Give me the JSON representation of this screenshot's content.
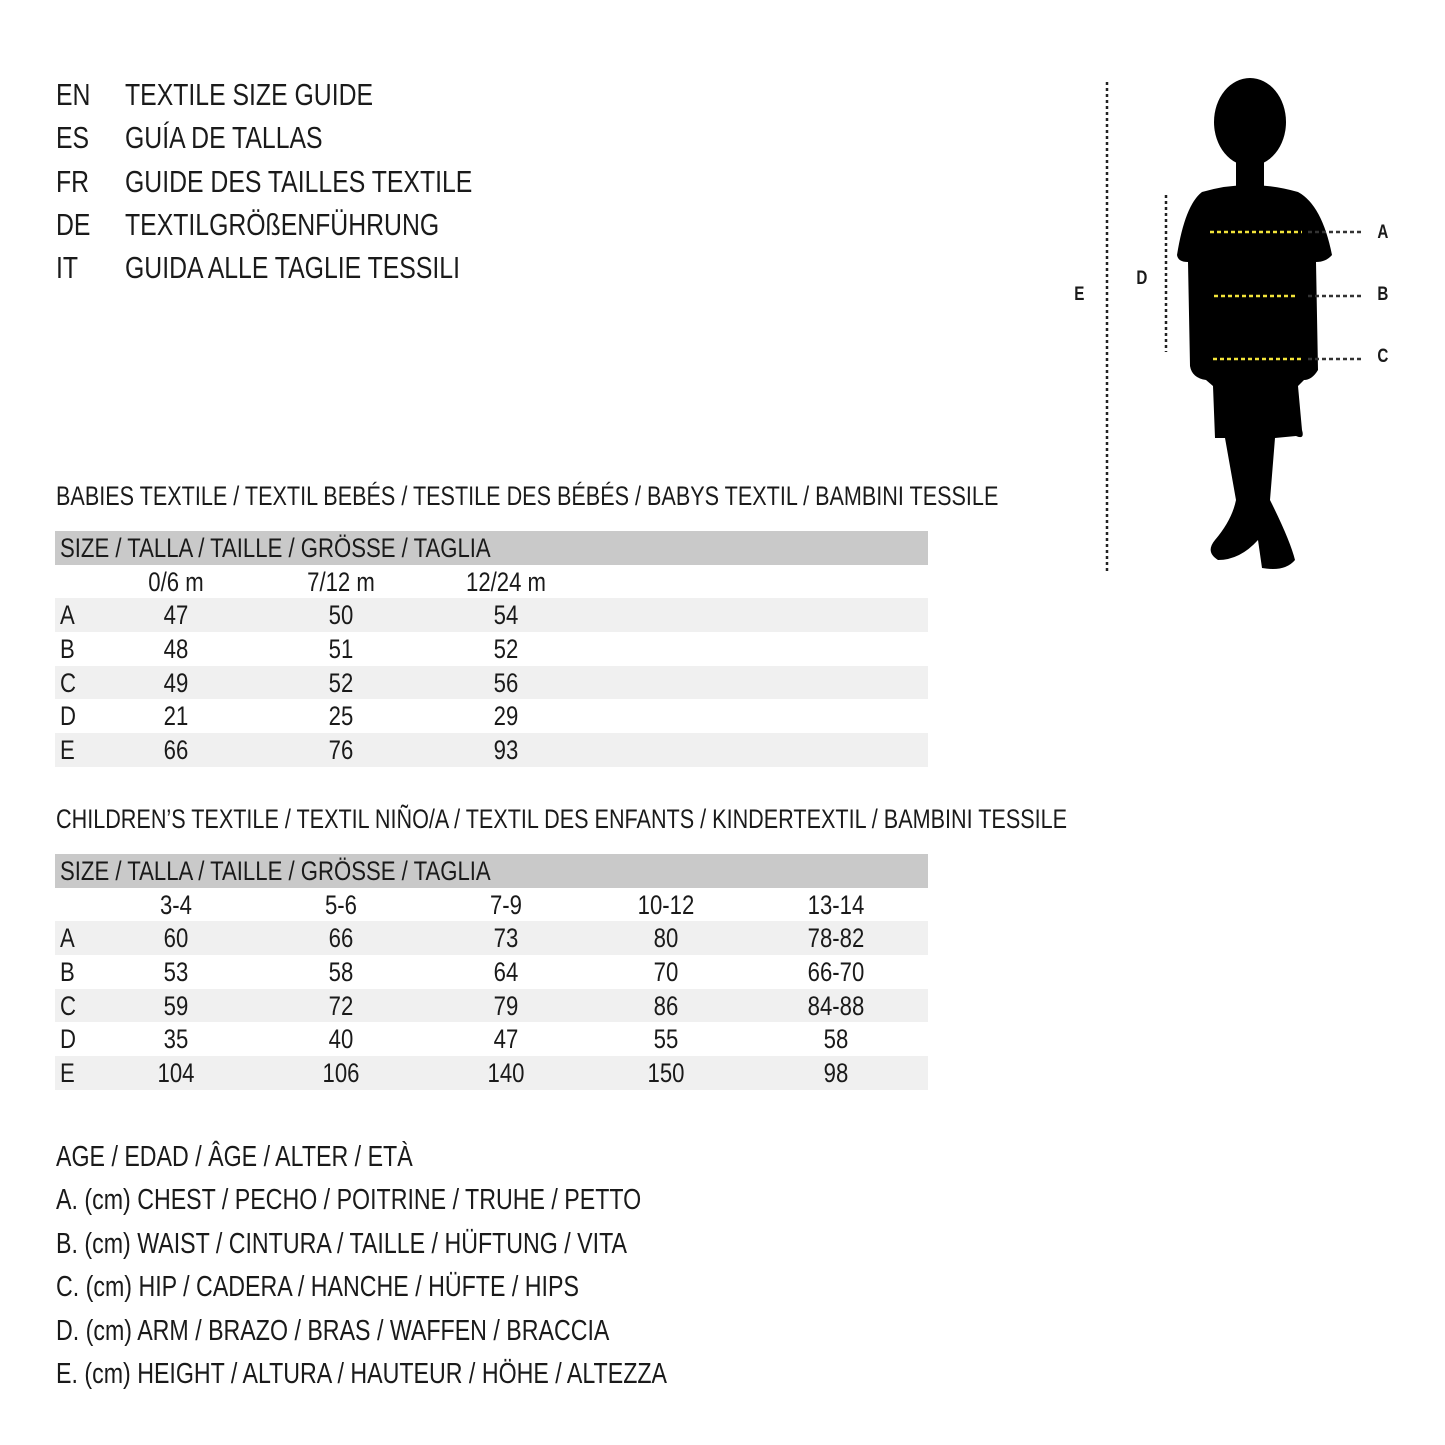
{
  "header": [
    {
      "code": "EN",
      "title": "TEXTILE SIZE GUIDE"
    },
    {
      "code": "ES",
      "title": "GUÍA DE TALLAS"
    },
    {
      "code": "FR",
      "title": "GUIDE DES TAILLES TEXTILE"
    },
    {
      "code": "DE",
      "title": "TEXTILGRÖßENFÜHRUNG"
    },
    {
      "code": "IT",
      "title": "GUIDA ALLE TAGLIE TESSILI"
    }
  ],
  "figure": {
    "labels": {
      "E": "E",
      "D": "D",
      "A": "A",
      "B": "B",
      "C": "C"
    },
    "measure_line_color": "#f2e33a"
  },
  "babies": {
    "title": "BABIES TEXTILE / TEXTIL BEBÉS / TESTILE DES BÉBÉS / BABYS TEXTIL / BAMBINI TESSILE",
    "size_label": "SIZE / TALLA / TAILLE / GRÖSSE / TAGLIA",
    "columns": [
      "0/6 m",
      "7/12 m",
      "12/24 m"
    ],
    "rows": [
      {
        "label": "A",
        "values": [
          "47",
          "50",
          "54"
        ]
      },
      {
        "label": "B",
        "values": [
          "48",
          "51",
          "52"
        ]
      },
      {
        "label": "C",
        "values": [
          "49",
          "52",
          "56"
        ]
      },
      {
        "label": "D",
        "values": [
          "21",
          "25",
          "29"
        ]
      },
      {
        "label": "E",
        "values": [
          "66",
          "76",
          "93"
        ]
      }
    ]
  },
  "children": {
    "title": "CHILDREN’S TEXTILE / TEXTIL NIÑO/A / TEXTIL DES ENFANTS / KINDERTEXTIL / BAMBINI TESSILE",
    "size_label": "SIZE / TALLA / TAILLE / GRÖSSE / TAGLIA",
    "columns": [
      "3-4",
      "5-6",
      "7-9",
      "10-12",
      "13-14"
    ],
    "rows": [
      {
        "label": "A",
        "values": [
          "60",
          "66",
          "73",
          "80",
          "78-82"
        ]
      },
      {
        "label": "B",
        "values": [
          "53",
          "58",
          "64",
          "70",
          "66-70"
        ]
      },
      {
        "label": "C",
        "values": [
          "59",
          "72",
          "79",
          "86",
          "84-88"
        ]
      },
      {
        "label": "D",
        "values": [
          "35",
          "40",
          "47",
          "55",
          "58"
        ]
      },
      {
        "label": "E",
        "values": [
          "104",
          "106",
          "140",
          "150",
          "98"
        ]
      }
    ]
  },
  "legend": [
    "AGE / EDAD / ÂGE / ALTER / ETÀ",
    "A. (cm) CHEST / PECHO / POITRINE / TRUHE / PETTO",
    "B. (cm) WAIST / CINTURA / TAILLE / HÜFTUNG / VITA",
    "C. (cm) HIP / CADERA / HANCHE / HÜFTE / HIPS",
    "D. (cm) ARM / BRAZO / BRAS / WAFFEN / BRACCIA",
    "E. (cm) HEIGHT / ALTURA / HAUTEUR / HÖHE / ALTEZZA"
  ]
}
